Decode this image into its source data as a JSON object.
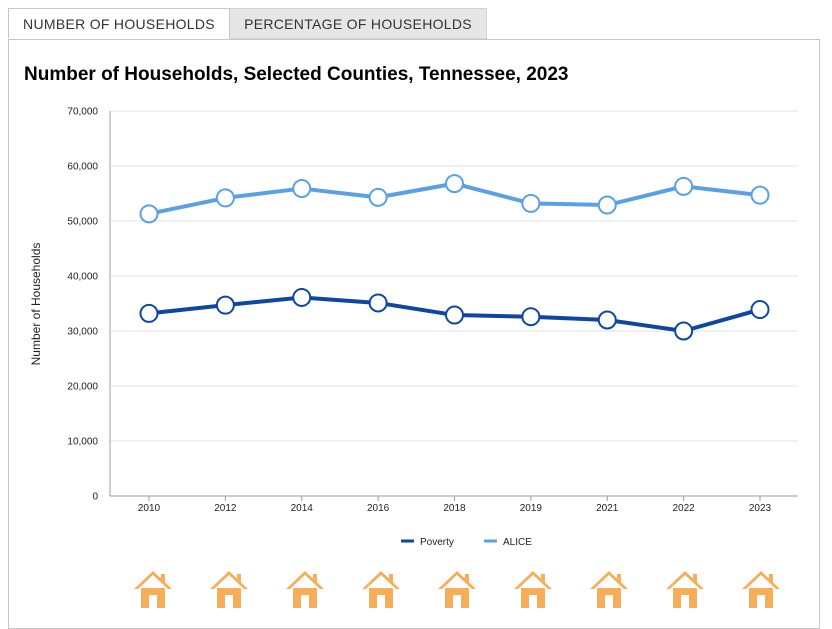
{
  "tabs": [
    {
      "label": "NUMBER OF HOUSEHOLDS",
      "active": true
    },
    {
      "label": "PERCENTAGE OF HOUSEHOLDS",
      "active": false
    }
  ],
  "chart_data": {
    "type": "line",
    "title": "Number of Households, Selected Counties, Tennessee, 2023",
    "xlabel": "",
    "ylabel": "Number of Households",
    "categories": [
      "2010",
      "2012",
      "2014",
      "2016",
      "2018",
      "2019",
      "2021",
      "2022",
      "2023"
    ],
    "yticks": [
      "0",
      "10,000",
      "20,000",
      "30,000",
      "40,000",
      "50,000",
      "60,000",
      "70,000"
    ],
    "ylim": [
      0,
      70000
    ],
    "grid": true,
    "legend_position": "bottom",
    "series": [
      {
        "name": "Poverty",
        "color": "#0d47a1",
        "values": [
          33200,
          34700,
          36100,
          35100,
          32900,
          32600,
          32000,
          30000,
          33900
        ]
      },
      {
        "name": "ALICE",
        "color": "#5aa0e6",
        "values": [
          51300,
          54200,
          55900,
          54300,
          56800,
          53200,
          52900,
          56300,
          54700
        ]
      }
    ]
  },
  "footer_icons": {
    "icon": "house-icon",
    "count": 9,
    "color": "#f6ae5b"
  }
}
